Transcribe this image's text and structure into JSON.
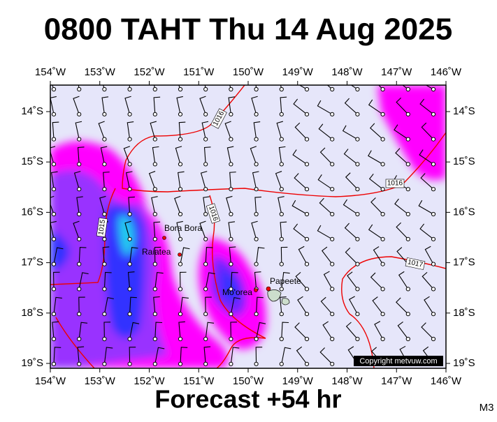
{
  "title": "0800 TAHT Thu 14 Aug 2025",
  "footer": "Forecast +54 hr",
  "model": "M3",
  "copyright": "Copyright metvuw.com",
  "lon_ticks": [
    "154˚W",
    "153˚W",
    "152˚W",
    "151˚W",
    "150˚W",
    "149˚W",
    "148˚W",
    "147˚W",
    "146˚W"
  ],
  "lat_ticks": [
    "14˚S",
    "15˚S",
    "16˚S",
    "17˚S",
    "18˚S",
    "19˚S"
  ],
  "places": [
    "Bora Bora",
    "Raiatea",
    "Papeete",
    "Mo'orea"
  ],
  "isobar_labels": [
    "1016",
    "1016",
    "1015",
    "1016",
    "1017"
  ]
}
